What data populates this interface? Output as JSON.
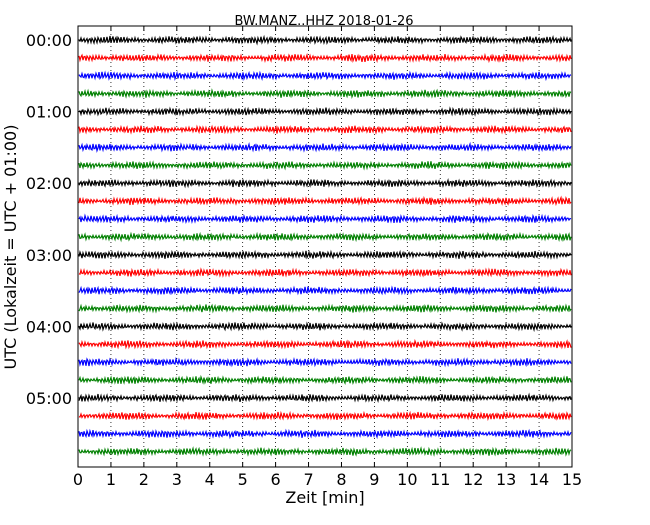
{
  "chart_data": {
    "type": "line",
    "title": "BW.MANZ..HHZ 2018-01-26",
    "xlabel": "Zeit  [min]",
    "ylabel": "UTC (Lokalzeit = UTC + 01:00)",
    "xlim": [
      0,
      15
    ],
    "x_ticks": [
      0,
      1,
      2,
      3,
      4,
      5,
      6,
      7,
      8,
      9,
      10,
      11,
      12,
      13,
      14,
      15
    ],
    "x_tick_labels": [
      "0",
      "1",
      "2",
      "3",
      "4",
      "5",
      "6",
      "7",
      "8",
      "9",
      "10",
      "11",
      "12",
      "13",
      "14",
      "15"
    ],
    "y_tick_labels": [
      {
        "label": "00:00",
        "row": 0
      },
      {
        "label": "01:00",
        "row": 4
      },
      {
        "label": "02:00",
        "row": 8
      },
      {
        "label": "03:00",
        "row": 12
      },
      {
        "label": "04:00",
        "row": 16
      },
      {
        "label": "05:00",
        "row": 20
      }
    ],
    "grid": "vertical-dotted",
    "trace_interval_minutes": 15,
    "trace_count": 24,
    "trace_colors": [
      "#000000",
      "#ff0000",
      "#0000ff",
      "#008000"
    ],
    "trace_waveform": "dense seismic noise, no major events"
  }
}
